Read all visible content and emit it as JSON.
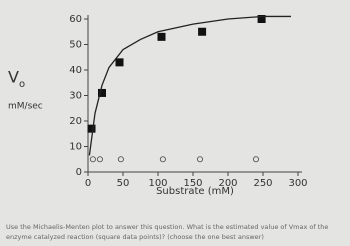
{
  "chart_data": {
    "type": "scatter",
    "y_label": "V",
    "y_label_sub": "o",
    "y_units": "mM/sec",
    "x_label": "Substrate (mM)",
    "xlim": [
      0,
      300
    ],
    "xticks": [
      0,
      50,
      100,
      150,
      200,
      250,
      300
    ],
    "ylim": [
      0,
      60
    ],
    "yticks": [
      0,
      10,
      20,
      30,
      40,
      50,
      60
    ],
    "series": [
      {
        "marker": "square",
        "color": "#111111",
        "x": [
          5,
          20,
          45,
          105,
          163,
          248
        ],
        "values": [
          17,
          31,
          43,
          53,
          55,
          60
        ]
      },
      {
        "marker": "circle",
        "color": "#555555",
        "x": [
          7,
          17,
          47,
          107,
          160,
          240
        ],
        "values": [
          5,
          5,
          5,
          5,
          5,
          5
        ]
      },
      {
        "marker": "line",
        "color": "#222222",
        "x": [
          2,
          10,
          20,
          30,
          50,
          75,
          100,
          150,
          200,
          250,
          290
        ],
        "values": [
          6.5,
          23,
          34,
          41,
          48,
          52,
          55,
          58,
          60,
          61,
          61
        ]
      }
    ]
  },
  "question": "Use the Michaelis-Menten plot to answer this question. What is the estimated value of Vmax of the enzyme catalyzed reaction (square data points)? (choose the one best answer)"
}
